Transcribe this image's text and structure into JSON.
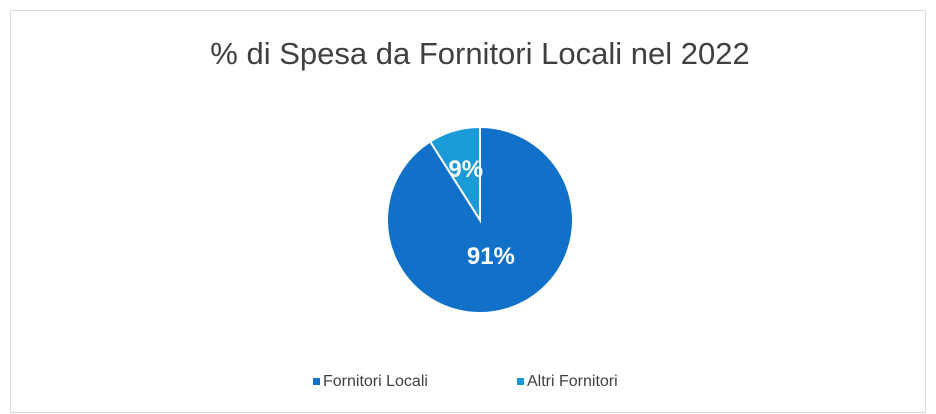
{
  "chart_data": {
    "type": "pie",
    "title": "% di Spesa da Fornitori Locali nel 2022",
    "categories": [
      "Fornitori Locali",
      "Altri Fornitori"
    ],
    "values": [
      91,
      9
    ],
    "value_labels": [
      "91%",
      "9%"
    ],
    "colors": [
      "#1170c8",
      "#1a9ad6"
    ],
    "legend": "bottom"
  }
}
